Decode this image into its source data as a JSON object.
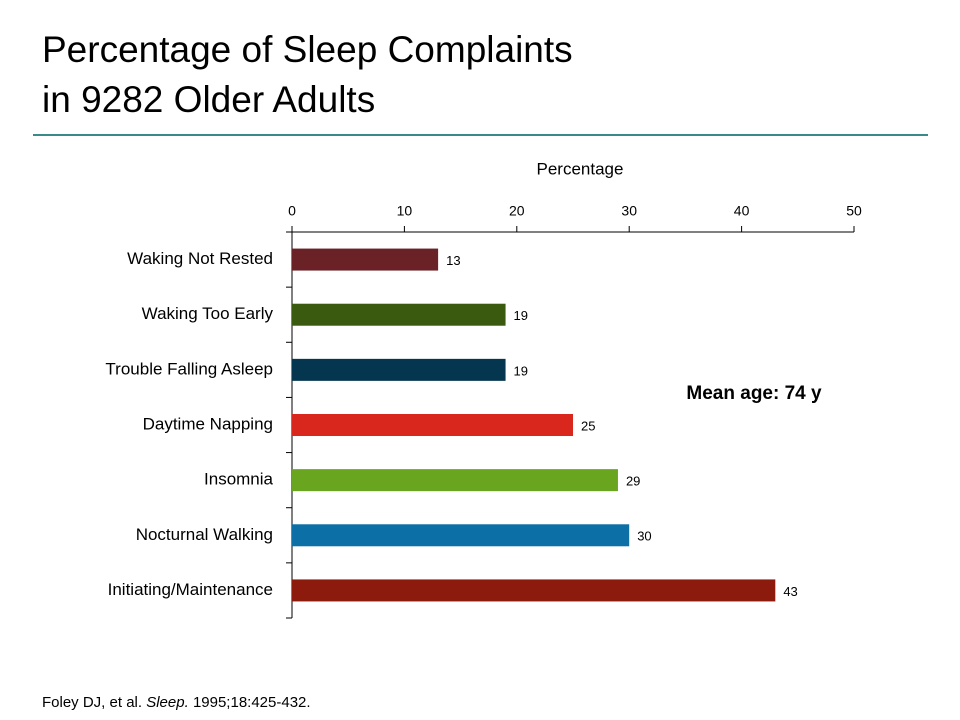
{
  "chart_data": {
    "type": "hbar",
    "title": [
      "Percentage of Sleep Complaints",
      "in 9282 Older Adults"
    ],
    "x_label": "Percentage",
    "categories": [
      "Waking Not Rested",
      "Waking Too Early",
      "Trouble Falling Asleep",
      "Daytime Napping",
      "Insomnia",
      "Nocturnal Walking",
      "Initiating/Maintenance"
    ],
    "values": [
      13,
      19,
      19,
      25,
      29,
      30,
      43
    ],
    "colors": [
      "#6b2226",
      "#3a5a10",
      "#04364f",
      "#d9271e",
      "#6aa51f",
      "#0c6fa6",
      "#8c1a0d"
    ],
    "xlim": [
      0,
      50
    ],
    "xticks": [
      0,
      10,
      20,
      30,
      40,
      50
    ],
    "annotation": "Mean age: 74 y",
    "source": {
      "authors": "Foley DJ, et al.",
      "journal": "Sleep.",
      "details": "1995;18:425-432."
    }
  }
}
